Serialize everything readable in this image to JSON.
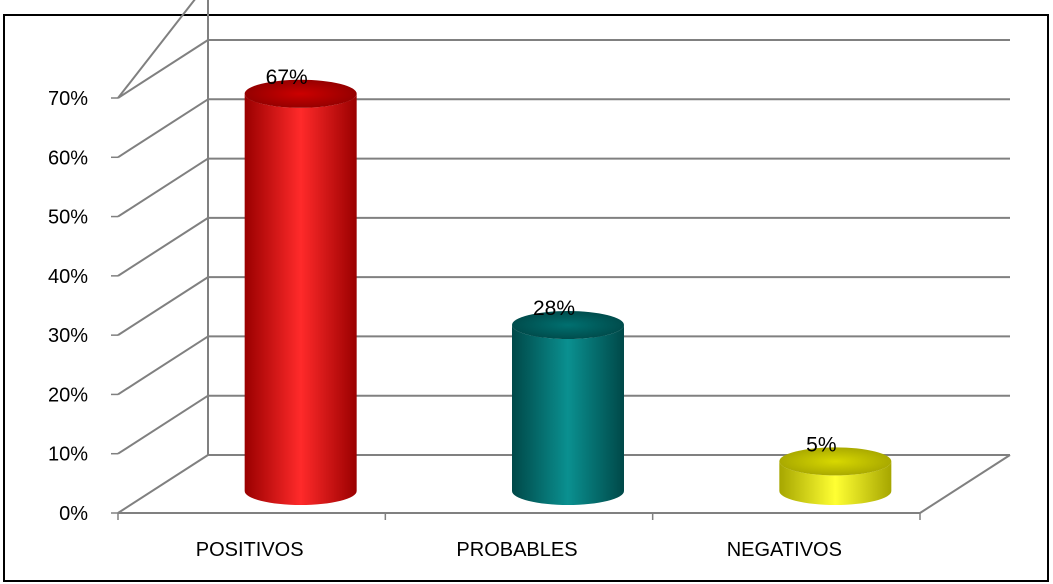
{
  "chart_data": {
    "type": "bar",
    "style": "3d-cylinder",
    "categories": [
      "POSITIVOS",
      "PROBABLES",
      "NEGATIVOS"
    ],
    "values": [
      67,
      28,
      5
    ],
    "data_labels": [
      "67%",
      "28%",
      "5%"
    ],
    "y_ticks": [
      "0%",
      "10%",
      "20%",
      "30%",
      "40%",
      "50%",
      "60%",
      "70%"
    ],
    "ylim": [
      0,
      70
    ],
    "grid": true,
    "legend": "none",
    "colors": {
      "POSITIVOS": "#ff0000",
      "PROBABLES": "#008080",
      "NEGATIVOS": "#ffff00"
    },
    "gridline_color": "#808080",
    "frame_color": "#000000"
  }
}
